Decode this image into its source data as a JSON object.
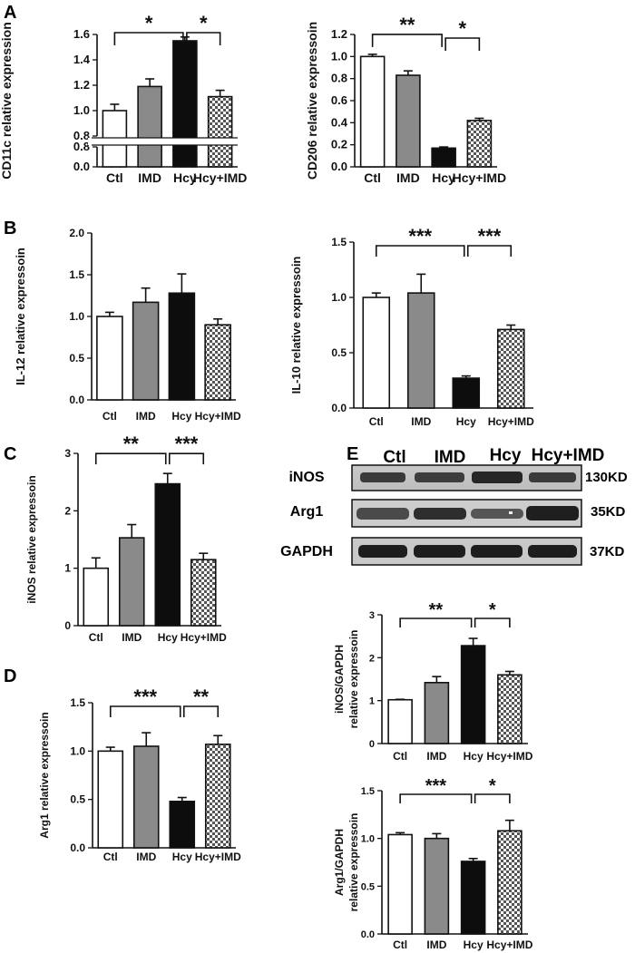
{
  "panel_letters": [
    "A",
    "B",
    "C",
    "D",
    "E"
  ],
  "colors": {
    "ctl": "#ffffff",
    "imd": "#8a8a8a",
    "hcy": "#0d0d0d",
    "hcy_imd": "checkered"
  },
  "chart_data": [
    {
      "id": "cd11c",
      "panel": "A",
      "type": "bar",
      "categories": [
        "Ctl",
        "IMD",
        "Hcy",
        "Hcy+IMD"
      ],
      "values": [
        1.0,
        1.19,
        1.55,
        1.11
      ],
      "errors": [
        0.05,
        0.06,
        0.03,
        0.05
      ],
      "ylabel": "CD11c relative expression",
      "ylim": [
        0.8,
        1.6
      ],
      "broken_axis": true,
      "yticks": [
        "0.8",
        "1.0",
        "1.2",
        "1.4",
        "1.6"
      ],
      "lower_ticks": [
        "0.0",
        "0.8"
      ],
      "significance": [
        {
          "from": 0,
          "to": 2,
          "label": "*"
        },
        {
          "from": 2,
          "to": 3,
          "label": "*"
        }
      ]
    },
    {
      "id": "cd206",
      "panel": "A",
      "type": "bar",
      "categories": [
        "Ctl",
        "IMD",
        "Hcy",
        "Hcy+IMD"
      ],
      "values": [
        1.0,
        0.83,
        0.17,
        0.42
      ],
      "errors": [
        0.02,
        0.04,
        0.01,
        0.02
      ],
      "ylabel": "CD206 relative expressoin",
      "ylim": [
        0,
        1.2
      ],
      "yticks": [
        "0.0",
        "0.2",
        "0.4",
        "0.6",
        "0.8",
        "1.0",
        "1.2"
      ],
      "significance": [
        {
          "from": 0,
          "to": 2,
          "label": "**"
        },
        {
          "from": 2,
          "to": 3,
          "label": "*"
        }
      ]
    },
    {
      "id": "il12",
      "panel": "B",
      "type": "bar",
      "categories": [
        "Ctl",
        "IMD",
        "Hcy",
        "Hcy+IMD"
      ],
      "values": [
        1.0,
        1.17,
        1.28,
        0.9
      ],
      "errors": [
        0.05,
        0.17,
        0.23,
        0.07
      ],
      "ylabel": "IL-12 relative expressoin",
      "ylim": [
        0,
        2.0
      ],
      "yticks": [
        "0.0",
        "0.5",
        "1.0",
        "1.5",
        "2.0"
      ],
      "significance": []
    },
    {
      "id": "il10",
      "panel": "B",
      "type": "bar",
      "categories": [
        "Ctl",
        "IMD",
        "Hcy",
        "Hcy+IMD"
      ],
      "values": [
        1.0,
        1.04,
        0.27,
        0.71
      ],
      "errors": [
        0.04,
        0.17,
        0.02,
        0.04
      ],
      "ylabel": "IL-10 relative expressoin",
      "ylim": [
        0,
        1.5
      ],
      "yticks": [
        "0.0",
        "0.5",
        "1.0",
        "1.5"
      ],
      "significance": [
        {
          "from": 0,
          "to": 2,
          "label": "***"
        },
        {
          "from": 2,
          "to": 3,
          "label": "***"
        }
      ]
    },
    {
      "id": "inos",
      "panel": "C",
      "type": "bar",
      "categories": [
        "Ctl",
        "IMD",
        "Hcy",
        "Hcy+IMD"
      ],
      "values": [
        1.0,
        1.53,
        2.47,
        1.15
      ],
      "errors": [
        0.18,
        0.23,
        0.18,
        0.11
      ],
      "ylabel": "iNOS relative expressoin",
      "ylim": [
        0,
        3
      ],
      "yticks": [
        "0",
        "1",
        "2",
        "3"
      ],
      "significance": [
        {
          "from": 0,
          "to": 2,
          "label": "**"
        },
        {
          "from": 2,
          "to": 3,
          "label": "***"
        }
      ]
    },
    {
      "id": "arg1",
      "panel": "D",
      "type": "bar",
      "categories": [
        "Ctl",
        "IMD",
        "Hcy",
        "Hcy+IMD"
      ],
      "values": [
        1.0,
        1.05,
        0.48,
        1.07
      ],
      "errors": [
        0.04,
        0.14,
        0.04,
        0.09
      ],
      "ylabel": "Arg1 relative expressoin",
      "ylim": [
        0,
        1.5
      ],
      "yticks": [
        "0.0",
        "0.5",
        "1.0",
        "1.5"
      ],
      "significance": [
        {
          "from": 0,
          "to": 2,
          "label": "***"
        },
        {
          "from": 2,
          "to": 3,
          "label": "**"
        }
      ]
    },
    {
      "id": "inos_gapdh",
      "panel": "E",
      "type": "bar",
      "categories": [
        "Ctl",
        "IMD",
        "Hcy",
        "Hcy+IMD"
      ],
      "values": [
        1.02,
        1.42,
        2.28,
        1.6
      ],
      "errors": [
        0.01,
        0.14,
        0.17,
        0.08
      ],
      "ylabel": [
        "iNOS/GAPDH",
        "relative expressoin"
      ],
      "ylim": [
        0,
        3
      ],
      "yticks": [
        "0",
        "1",
        "2",
        "3"
      ],
      "significance": [
        {
          "from": 0,
          "to": 2,
          "label": "**"
        },
        {
          "from": 2,
          "to": 3,
          "label": "*"
        }
      ]
    },
    {
      "id": "arg1_gapdh",
      "panel": "E",
      "type": "bar",
      "categories": [
        "Ctl",
        "IMD",
        "Hcy",
        "Hcy+IMD"
      ],
      "values": [
        1.04,
        1.0,
        0.76,
        1.08
      ],
      "errors": [
        0.02,
        0.05,
        0.03,
        0.11
      ],
      "ylabel": [
        "Arg1/GAPDH",
        "relative expressoin"
      ],
      "ylim": [
        0,
        1.5
      ],
      "yticks": [
        "0.0",
        "0.5",
        "1.0",
        "1.5"
      ],
      "significance": [
        {
          "from": 0,
          "to": 2,
          "label": "***"
        },
        {
          "from": 2,
          "to": 3,
          "label": "*"
        }
      ]
    }
  ],
  "blot": {
    "lanes": [
      "Ctl",
      "IMD",
      "Hcy",
      "Hcy+IMD"
    ],
    "rows": [
      {
        "protein": "iNOS",
        "size": "130KD"
      },
      {
        "protein": "Arg1",
        "size": "35KD"
      },
      {
        "protein": "GAPDH",
        "size": "37KD"
      }
    ]
  }
}
